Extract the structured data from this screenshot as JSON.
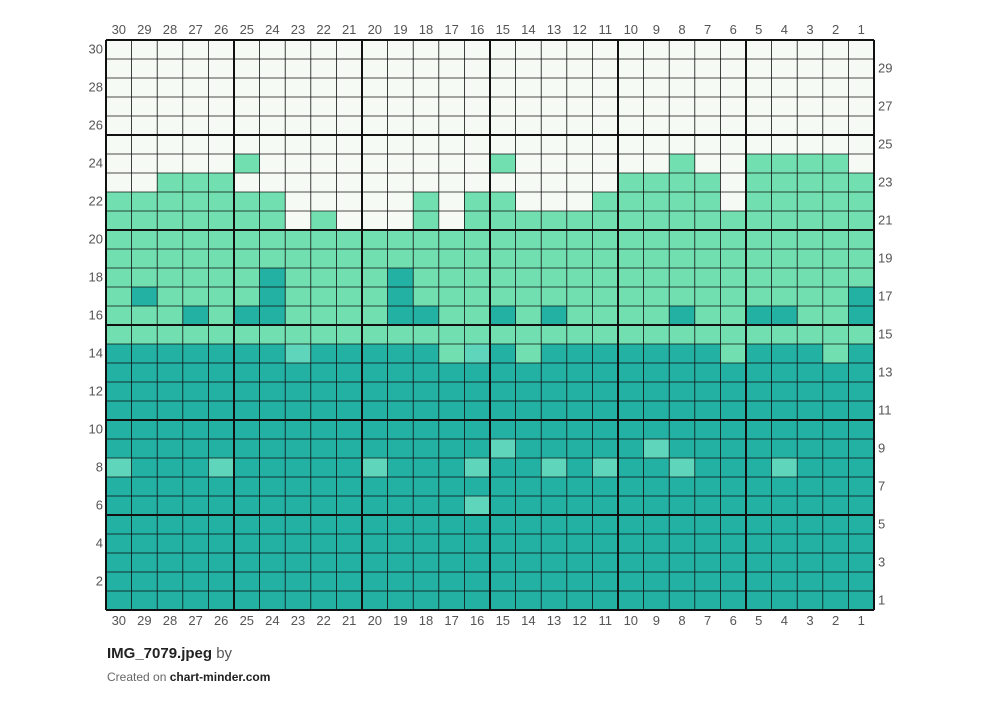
{
  "chart_data": {
    "type": "heatmap",
    "columns": 30,
    "rows": 30,
    "column_labels_ltr": [
      30,
      29,
      28,
      27,
      26,
      25,
      24,
      23,
      22,
      21,
      20,
      19,
      18,
      17,
      16,
      15,
      14,
      13,
      12,
      11,
      10,
      9,
      8,
      7,
      6,
      5,
      4,
      3,
      2,
      1
    ],
    "row_labels_left": [
      30,
      28,
      26,
      24,
      22,
      20,
      18,
      16,
      14,
      12,
      10,
      8,
      6,
      4,
      2
    ],
    "row_labels_right": [
      29,
      27,
      25,
      23,
      21,
      19,
      17,
      15,
      13,
      11,
      9,
      7,
      5,
      3,
      1
    ],
    "major_grid_every": 5,
    "colors": {
      "W": "#f5fbf4",
      "L": "#71dfb0",
      "D": "#22b1a3",
      "M": "#5fd6bc",
      "grid": "#111111",
      "label": "#555555"
    },
    "cells_top_to_bottom": [
      "WWWWWWWWWWWWWWWWWWWWWWWWWWWWWW",
      "WWWWWWWWWWWWWWWWWWWWWWWWWWWWWW",
      "WWWWWWWWWWWWWWWWWWWWWWWWWWWWWW",
      "WWWWWWWWWWWWWWWWWWWWWWWWWWWWWW",
      "WWWWWWWWWWWWWWWWWWWWWWWWWWWWWW",
      "WWWWWWWWWWWWWWWWWWWWWWWWWWWWWW",
      "WWWWWLWWWWWWWWWLWWWWWWLWWLLLLW",
      "WWLLLWWWWWWWWWWWWWWWLLLLWLLLLL",
      "LLLLLLLWWWWWLWLLWWWLLLLLWLLLLL",
      "LLLLLLLWLWWWLWLLLLLLLLLLLLLLLL",
      "LLLLLLLLLLLLLLLLLLLLLLLLLLLLLL",
      "LLLLLLLLLLLLLLLLLLLLLLLLLLLLLL",
      "LLLLLLDLLLLDLLLLLLLLLLLLLLLLLL",
      "LDLLLLDLLLLDLLLLLLLLLLLLLLLLLD",
      "LLLDLDDLLLLDDLLDLDLLLLDLLDDLLD",
      "LLLLLLLLLLLLLLLLLLLLLLLLLLLLLL",
      "DDDDDDDMDDDDDLMDLDDDDDDDLDDDLD",
      "DDDDDDDDDDDDDDDDDDDDDDDDDDDDDD",
      "DDDDDDDDDDDDDDDDDDDDDDDDDDDDDD",
      "DDDDDDDDDDDDDDDDDDDDDDDDDDDDDD",
      "DDDDDDDDDDDDDDDDDDDDDDDDDDDDDD",
      "DDDDDDDDDDDDDDDMDDDDDMDDDDDDDD",
      "MDDDMDDDDDMDDDMDDMDMDDMDDDMDDD",
      "DDDDDDDDDDDDDDDDDDDDDDDDDDDDDD",
      "DDDDDDDDDDDDDDMDDDDDDDDDDDDDDD",
      "DDDDDDDDDDDDDDDDDDDDDDDDDDDDDD",
      "DDDDDDDDDDDDDDDDDDDDDDDDDDDDDD",
      "DDDDDDDDDDDDDDDDDDDDDDDDDDDDDD",
      "DDDDDDDDDDDDDDDDDDDDDDDDDDDDDD",
      "DDDDDDDDDDDDDDDDDDDDDDDDDDDDDD"
    ]
  },
  "footer": {
    "filename": "IMG_7079.jpeg",
    "by": "by",
    "created_on": "Created on",
    "site": "chart-minder.com"
  }
}
